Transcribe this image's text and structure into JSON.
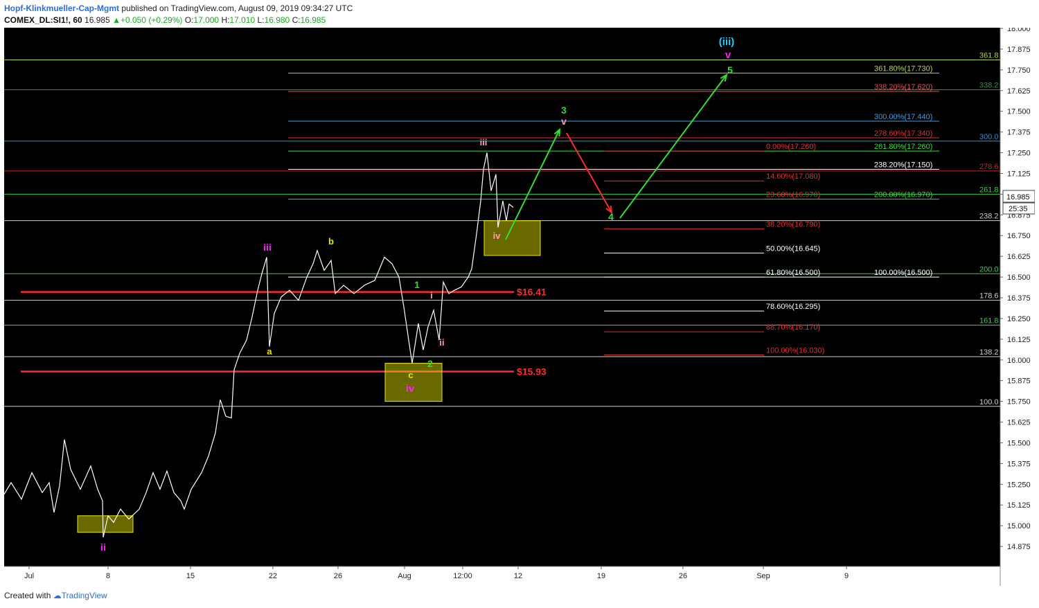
{
  "header": {
    "author": "Hopf-Klinkmueller-Cap-Mgmt",
    "published": "published on TradingView.com, August 09, 2019 09:34:27 UTC",
    "symbol": "COMEX_DL:SI1!, 60",
    "last": "16.985",
    "change": "+0.050 (+0.29%)",
    "o_label": "O:",
    "o_value": "17.000",
    "h_label": "H:",
    "h_value": "17.010",
    "l_label": "L:",
    "l_value": "16.980",
    "c_label": "C:",
    "c_value": "16.985"
  },
  "footer": {
    "created_with": "Created with",
    "brand": "TradingView"
  },
  "colors": {
    "background": "#000000",
    "red": "#ff2a2a",
    "green": "#33dd33",
    "yellow": "#e8e800",
    "magenta": "#ff22ff",
    "pink": "#ff9bb5",
    "cyan": "#22ccff",
    "white": "#ffffff"
  },
  "chart_data": {
    "type": "line",
    "y_range": [
      14.75,
      18.0
    ],
    "y_ticks": [
      "18.000",
      "17.875",
      "17.750",
      "17.625",
      "17.500",
      "17.375",
      "17.250",
      "17.125",
      "17.000",
      "16.875",
      "16.750",
      "16.625",
      "16.500",
      "16.375",
      "16.250",
      "16.125",
      "16.000",
      "15.875",
      "15.750",
      "15.625",
      "15.500",
      "15.375",
      "15.250",
      "15.125",
      "15.000",
      "14.875"
    ],
    "x_ticks": [
      "Jul",
      "8",
      "15",
      "22",
      "26",
      "Aug",
      "12:00",
      "12",
      "19",
      "26",
      "Sep",
      "9"
    ],
    "last_price_label": "16.985",
    "countdown_label": "25:35",
    "price_path": [
      [
        0,
        15.19
      ],
      [
        10,
        15.26
      ],
      [
        25,
        15.16
      ],
      [
        40,
        15.32
      ],
      [
        55,
        15.2
      ],
      [
        65,
        15.26
      ],
      [
        72,
        15.08
      ],
      [
        80,
        15.24
      ],
      [
        87,
        15.52
      ],
      [
        96,
        15.34
      ],
      [
        110,
        15.22
      ],
      [
        125,
        15.36
      ],
      [
        135,
        15.22
      ],
      [
        142,
        15.15
      ],
      [
        143,
        14.93
      ],
      [
        150,
        15.06
      ],
      [
        158,
        15.02
      ],
      [
        168,
        15.1
      ],
      [
        180,
        15.04
      ],
      [
        195,
        15.1
      ],
      [
        205,
        15.2
      ],
      [
        215,
        15.32
      ],
      [
        225,
        15.22
      ],
      [
        235,
        15.33
      ],
      [
        245,
        15.2
      ],
      [
        255,
        15.15
      ],
      [
        260,
        15.1
      ],
      [
        270,
        15.22
      ],
      [
        285,
        15.32
      ],
      [
        295,
        15.42
      ],
      [
        305,
        15.56
      ],
      [
        312,
        15.76
      ],
      [
        320,
        15.66
      ],
      [
        328,
        15.65
      ],
      [
        332,
        15.94
      ],
      [
        340,
        16.04
      ],
      [
        350,
        16.12
      ],
      [
        358,
        16.26
      ],
      [
        366,
        16.42
      ],
      [
        372,
        16.52
      ],
      [
        379,
        16.62
      ],
      [
        383,
        16.08
      ],
      [
        390,
        16.28
      ],
      [
        400,
        16.38
      ],
      [
        412,
        16.42
      ],
      [
        425,
        16.36
      ],
      [
        437,
        16.5
      ],
      [
        446,
        16.58
      ],
      [
        452,
        16.66
      ],
      [
        462,
        16.54
      ],
      [
        472,
        16.6
      ],
      [
        478,
        16.4
      ],
      [
        490,
        16.45
      ],
      [
        505,
        16.4
      ],
      [
        520,
        16.45
      ],
      [
        535,
        16.48
      ],
      [
        549,
        16.62
      ],
      [
        560,
        16.58
      ],
      [
        570,
        16.5
      ],
      [
        577,
        16.32
      ],
      [
        584,
        16.12
      ],
      [
        589,
        15.98
      ],
      [
        598,
        16.22
      ],
      [
        605,
        16.06
      ],
      [
        612,
        16.2
      ],
      [
        620,
        16.3
      ],
      [
        628,
        16.12
      ],
      [
        634,
        16.47
      ],
      [
        642,
        16.4
      ],
      [
        650,
        16.42
      ],
      [
        660,
        16.44
      ],
      [
        670,
        16.5
      ],
      [
        675,
        16.55
      ],
      [
        682,
        16.76
      ],
      [
        688,
        16.96
      ],
      [
        692,
        17.15
      ],
      [
        697,
        17.25
      ],
      [
        703,
        17.02
      ],
      [
        710,
        17.12
      ],
      [
        713,
        16.8
      ],
      [
        720,
        16.96
      ],
      [
        725,
        16.84
      ],
      [
        729,
        16.94
      ],
      [
        735,
        16.92
      ]
    ],
    "horizontal_lines": [
      {
        "price": 17.81,
        "label": "361.8",
        "color": "#a8d84a"
      },
      {
        "price": 17.63,
        "label": "338.2",
        "color": "#1f9e4a"
      },
      {
        "price": 17.32,
        "label": "300.0",
        "color": "#2a8fdc"
      },
      {
        "price": 17.14,
        "label": "278.6",
        "color": "#c42a2a"
      },
      {
        "price": 17.0,
        "label": "261.8",
        "color": "#2fd34a"
      },
      {
        "price": 16.84,
        "label": "238.2",
        "color": "#cfcfcf"
      },
      {
        "price": 16.52,
        "label": "200.0",
        "color": "#2fd34a"
      },
      {
        "price": 16.36,
        "label": "178.6",
        "color": "#cfcfcf"
      },
      {
        "price": 16.21,
        "label": "161.8",
        "color": "#2fd34a"
      },
      {
        "price": 16.02,
        "label": "138.2",
        "color": "#cfcfcf"
      },
      {
        "price": 15.72,
        "label": "100.0",
        "color": "#cfcfcf"
      }
    ],
    "support_lines": [
      {
        "price": 16.41,
        "label": "$16.41",
        "color": "#ff2a2a"
      },
      {
        "price": 15.93,
        "label": "$15.93",
        "color": "#ff2a2a"
      }
    ],
    "fib_left": [
      {
        "price": 17.73,
        "label": "361.80%(17.730)",
        "color": "#b5d84a"
      },
      {
        "price": 17.62,
        "label": "338.20%(17.620)",
        "color": "#e05050"
      },
      {
        "price": 17.44,
        "label": "300.00%(17.440)",
        "color": "#3aa0e6"
      },
      {
        "price": 17.34,
        "label": "278.60%(17.340)",
        "color": "#e03030"
      },
      {
        "price": 17.26,
        "label": "261.80%(17.260)",
        "color": "#33dd33"
      },
      {
        "price": 17.15,
        "label": "238.20%(17.150)",
        "color": "#ffffff"
      },
      {
        "price": 16.97,
        "label": "200.00%(16.970)",
        "color": "#33dd33"
      },
      {
        "price": 16.5,
        "label": "100.00%(16.500)",
        "color": "#ffffff"
      }
    ],
    "fib_right": [
      {
        "price": 17.26,
        "label": "0.00%(17.260)",
        "color": "#e03030"
      },
      {
        "price": 17.08,
        "label": "14.60%(17.080)",
        "color": "#e03030"
      },
      {
        "price": 16.97,
        "label": "23.60%(16.970)",
        "color": "#e03030"
      },
      {
        "price": 16.79,
        "label": "38.20%(16.790)",
        "color": "#e03030"
      },
      {
        "price": 16.645,
        "label": "50.00%(16.645)",
        "color": "#ffffff"
      },
      {
        "price": 16.5,
        "label": "61.80%(16.500)",
        "color": "#ffffff"
      },
      {
        "price": 16.295,
        "label": "78.60%(16.295)",
        "color": "#ffffff"
      },
      {
        "price": 16.17,
        "label": "88.70%(16.170)",
        "color": "#e03030"
      },
      {
        "price": 16.03,
        "label": "100.00%(16.030)",
        "color": "#e03030"
      }
    ],
    "wave_labels": [
      {
        "text": "ii",
        "color": "#ff22ff"
      },
      {
        "text": "iii",
        "color": "#ff22ff"
      },
      {
        "text": "a",
        "color": "#e8e800"
      },
      {
        "text": "b",
        "color": "#e8e800"
      },
      {
        "text": "c",
        "color": "#e8e800"
      },
      {
        "text": "iv",
        "color": "#ff22ff"
      },
      {
        "text": "1",
        "color": "#33dd33"
      },
      {
        "text": "i",
        "color": "#ff9bb5"
      },
      {
        "text": "ii",
        "color": "#ff9bb5"
      },
      {
        "text": "2",
        "color": "#33dd33"
      },
      {
        "text": "iii",
        "color": "#ff9bb5"
      },
      {
        "text": "iv",
        "color": "#ff9bb5"
      },
      {
        "text": "3",
        "color": "#33dd33"
      },
      {
        "text": "v",
        "color": "#ff9bb5"
      },
      {
        "text": "4",
        "color": "#33dd33"
      },
      {
        "text": "5",
        "color": "#33dd33"
      },
      {
        "text": "v",
        "color": "#ff22ff"
      },
      {
        "text": "(iii)",
        "color": "#22ccff"
      }
    ]
  }
}
